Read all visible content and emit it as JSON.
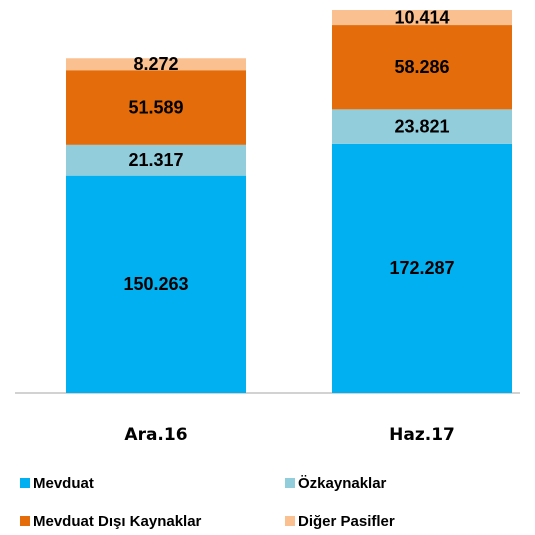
{
  "chart_data": {
    "type": "stacked_bar",
    "categories": [
      "Ara.16",
      "Haz.17"
    ],
    "series": [
      {
        "name": "Mevduat",
        "color": "#00b0f0",
        "values": [
          150263,
          172287
        ],
        "value_labels": [
          "150.263",
          "172.287"
        ]
      },
      {
        "name": "Özkaynaklar",
        "color": "#92cddc",
        "values": [
          21317,
          23821
        ],
        "value_labels": [
          "21.317",
          "23.821"
        ]
      },
      {
        "name": "Mevduat Dışı Kaynaklar",
        "color": "#e46c0a",
        "values": [
          51589,
          58286
        ],
        "value_labels": [
          "51.589",
          "58.286"
        ]
      },
      {
        "name": "Diğer Pasifler",
        "color": "#fac090",
        "values": [
          8272,
          10414
        ],
        "value_labels": [
          "8.272",
          "10.414"
        ]
      }
    ]
  }
}
